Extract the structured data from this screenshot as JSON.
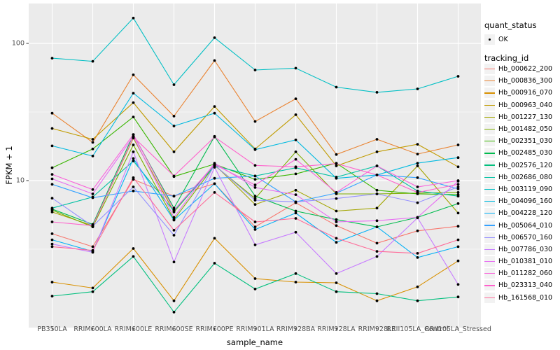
{
  "chart_data": {
    "type": "line",
    "title": "",
    "xlabel": "sample_name",
    "ylabel": "FPKM + 1",
    "y_scale": "log10",
    "ylim": [
      0.85,
      195
    ],
    "grid": true,
    "legend_position": "right",
    "panel_bg": "#EBEBEB",
    "grid_color": "#FFFFFF",
    "point_color": "#000000",
    "tick_text_color": "#4d4d4d",
    "y_ticks": [
      {
        "label": "10",
        "value": 10
      },
      {
        "label": "100",
        "value": 100
      }
    ],
    "y_minor_ticks": [
      3.1623,
      31.623
    ],
    "categories": [
      "PB350LA",
      "RRIM600LA",
      "RRIM600LE",
      "RRIM600SE",
      "RRIM600PE",
      "RRIM901LA",
      "RRIM928BA",
      "RRIM928LA",
      "RRIM928LE",
      "RRII105LA_Control",
      "RRII105LA_Stressed"
    ],
    "series": [
      {
        "name": "Hb_000622_200",
        "color": "#F8766D",
        "values": [
          4.1,
          3.3,
          10.2,
          7.7,
          9.5,
          4.6,
          6.9,
          4.7,
          3.5,
          4.3,
          4.65
        ]
      },
      {
        "name": "Hb_000836_300",
        "color": "#EA8331",
        "values": [
          31,
          19,
          59,
          29.5,
          75,
          27,
          39.5,
          15.5,
          20,
          15.6,
          18.2
        ]
      },
      {
        "name": "Hb_000916_070",
        "color": "#D89000",
        "values": [
          1.82,
          1.65,
          3.2,
          1.33,
          3.8,
          1.93,
          1.82,
          1.8,
          1.33,
          1.68,
          2.6
        ]
      },
      {
        "name": "Hb_000963_040",
        "color": "#C09B00",
        "values": [
          24,
          20,
          37,
          16.2,
          34.7,
          17,
          30.2,
          12.8,
          16.2,
          18.4,
          12.6
        ]
      },
      {
        "name": "Hb_001227_130",
        "color": "#A3A500",
        "values": [
          5.9,
          4.7,
          20.4,
          5.9,
          13.1,
          6.7,
          8.5,
          6.0,
          6.3,
          12.8,
          5.8
        ]
      },
      {
        "name": "Hb_001482_050",
        "color": "#7CAE00",
        "values": [
          6.1,
          4.6,
          18.2,
          5.2,
          12.9,
          7.4,
          16.2,
          8.0,
          8.0,
          8.1,
          8.2
        ]
      },
      {
        "name": "Hb_002351_030",
        "color": "#39B600",
        "values": [
          12.4,
          17,
          29.1,
          10.7,
          13.2,
          10.2,
          11.2,
          13.4,
          8.5,
          8.0,
          7.9
        ]
      },
      {
        "name": "Hb_002485_030",
        "color": "#00BB4E",
        "values": [
          6.2,
          4.8,
          21.6,
          6.3,
          21,
          7.7,
          6.0,
          5.2,
          4.6,
          5.4,
          6.8
        ]
      },
      {
        "name": "Hb_002576_120",
        "color": "#00BF7D",
        "values": [
          1.44,
          1.55,
          2.8,
          1.1,
          2.5,
          1.62,
          2.1,
          1.55,
          1.5,
          1.33,
          1.42
        ]
      },
      {
        "name": "Hb_002686_080",
        "color": "#00C1A3",
        "values": [
          6.3,
          7.6,
          13.9,
          6.0,
          12.8,
          10.8,
          12.4,
          10.6,
          12.8,
          8.4,
          7.7
        ]
      },
      {
        "name": "Hb_003119_090",
        "color": "#00BFC4",
        "values": [
          78,
          74,
          153,
          50,
          110,
          64,
          66,
          48,
          44,
          46.6,
          57.6
        ]
      },
      {
        "name": "Hb_004096_160",
        "color": "#00BAE0",
        "values": [
          17.9,
          15.1,
          43.4,
          25,
          31,
          16.8,
          19.8,
          10.4,
          11,
          13.4,
          14.7
        ]
      },
      {
        "name": "Hb_004228_120",
        "color": "#00B0F6",
        "values": [
          3.7,
          3.05,
          14.5,
          5.15,
          9.5,
          4.4,
          5.8,
          3.55,
          4.6,
          2.75,
          3.3
        ]
      },
      {
        "name": "Hb_005064_010",
        "color": "#35A2FF",
        "values": [
          9.4,
          7.5,
          8.4,
          7.7,
          10.4,
          10.8,
          7.0,
          8.1,
          11,
          10.5,
          8.7
        ]
      },
      {
        "name": "Hb_006570_160",
        "color": "#9590FF",
        "values": [
          7.45,
          4.65,
          9.0,
          4.0,
          13.0,
          7.2,
          7.0,
          7.4,
          8.0,
          6.9,
          9.0
        ]
      },
      {
        "name": "Hb_007786_030",
        "color": "#C77CFF",
        "values": [
          3.45,
          3.0,
          16.2,
          2.55,
          12.5,
          3.4,
          4.2,
          2.1,
          2.8,
          5.35,
          1.75
        ]
      },
      {
        "name": "Hb_010381_010",
        "color": "#E76BF3",
        "values": [
          10.3,
          8.0,
          21.0,
          5.4,
          13.4,
          8.9,
          7.9,
          5.0,
          5.1,
          5.4,
          9.9
        ]
      },
      {
        "name": "Hb_011282_060",
        "color": "#FA62DB",
        "values": [
          11.1,
          8.6,
          21.7,
          6.1,
          13.1,
          9.3,
          14.3,
          8.2,
          12.8,
          9.0,
          10.0
        ]
      },
      {
        "name": "Hb_023313_040",
        "color": "#FF61CC",
        "values": [
          5.0,
          4.7,
          20.8,
          10.8,
          20.8,
          12.9,
          12.6,
          13.3,
          11.0,
          8.2,
          9.4
        ]
      },
      {
        "name": "Hb_161568_010",
        "color": "#FF6A98",
        "values": [
          3.3,
          3.1,
          10.5,
          4.35,
          8.2,
          5.0,
          5.3,
          3.8,
          3.05,
          2.95,
          3.7
        ]
      }
    ]
  },
  "legend": {
    "quant_status": {
      "title": "quant_status",
      "items": [
        {
          "label": "OK",
          "symbol": "point",
          "color": "#000000"
        }
      ]
    },
    "tracking": {
      "title": "tracking_id"
    }
  }
}
